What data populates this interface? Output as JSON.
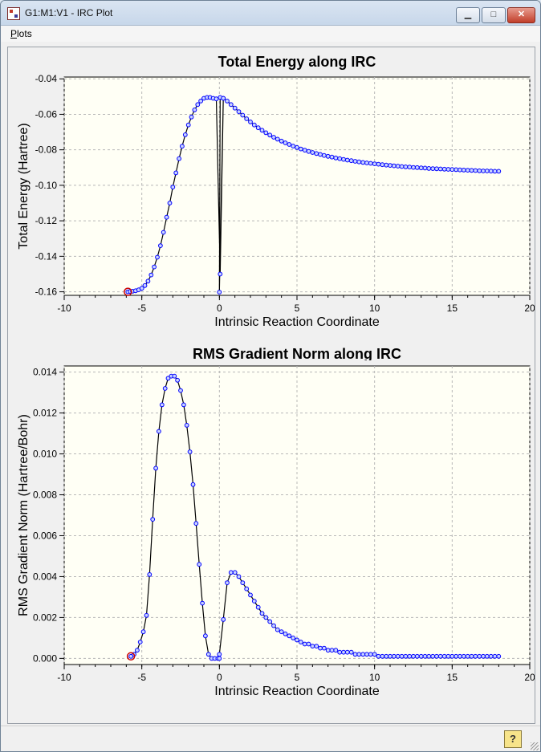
{
  "window": {
    "title": "G1:M1:V1 - IRC Plot",
    "minimize_glyph": "▁",
    "maximize_glyph": "□",
    "close_glyph": "✕",
    "icon": "app-icon"
  },
  "menu": {
    "items": [
      "Plots"
    ]
  },
  "status": {
    "help_glyph": "?",
    "icon": "help-icon"
  },
  "colors": {
    "plot_bg": "#fffff5",
    "marker": "#0000ff",
    "line": "#000000",
    "highlight": "#cc0000",
    "grid": "#b8b8b8"
  },
  "chart_data": [
    {
      "type": "line",
      "title": "Total Energy along IRC",
      "xlabel": "Intrinsic Reaction Coordinate",
      "ylabel": "Total Energy (Hartree)",
      "xlim": [
        -10,
        20
      ],
      "ylim": [
        -0.162,
        -0.039
      ],
      "xticks": [
        -10,
        -5,
        0,
        5,
        10,
        15,
        20
      ],
      "yticks": [
        -0.04,
        -0.06,
        -0.08,
        -0.1,
        -0.12,
        -0.14,
        -0.16
      ],
      "ytick_decimals": 2,
      "grid": true,
      "highlight_index": 0,
      "connect_mode": "sequence",
      "x": [
        -5.9,
        -5.75,
        -5.6,
        -5.4,
        -5.2,
        -5.0,
        -4.8,
        -4.6,
        -4.4,
        -4.2,
        -4.0,
        -3.8,
        -3.6,
        -3.4,
        -3.2,
        -3.0,
        -2.8,
        -2.6,
        -2.4,
        -2.2,
        -2.0,
        -1.8,
        -1.6,
        -1.4,
        -1.2,
        -1.0,
        -0.8,
        -0.6,
        -0.4,
        -0.2,
        0.05,
        0.25,
        0.0,
        0.05,
        0.25,
        0.5,
        0.75,
        1.0,
        1.25,
        1.5,
        1.75,
        2.0,
        2.25,
        2.5,
        2.75,
        3.0,
        3.25,
        3.5,
        3.75,
        4.0,
        4.25,
        4.5,
        4.75,
        5.0,
        5.25,
        5.5,
        5.75,
        6.0,
        6.25,
        6.5,
        6.75,
        7.0,
        7.25,
        7.5,
        7.75,
        8.0,
        8.25,
        8.5,
        8.75,
        9.0,
        9.25,
        9.5,
        9.75,
        10.0,
        10.25,
        10.5,
        10.75,
        11.0,
        11.25,
        11.5,
        11.75,
        12.0,
        12.25,
        12.5,
        12.75,
        13.0,
        13.25,
        13.5,
        13.75,
        14.0,
        14.25,
        14.5,
        14.75,
        15.0,
        15.25,
        15.5,
        15.75,
        16.0,
        16.25,
        16.5,
        16.75,
        17.0,
        17.25,
        17.5,
        17.75,
        18.0
      ],
      "y": [
        -0.16,
        -0.1598,
        -0.1597,
        -0.1594,
        -0.1589,
        -0.158,
        -0.1565,
        -0.154,
        -0.1505,
        -0.146,
        -0.1405,
        -0.134,
        -0.1265,
        -0.118,
        -0.11,
        -0.101,
        -0.093,
        -0.085,
        -0.078,
        -0.0715,
        -0.066,
        -0.0615,
        -0.0575,
        -0.0545,
        -0.0525,
        -0.051,
        -0.0505,
        -0.0505,
        -0.051,
        -0.0513,
        -0.15,
        -0.051,
        -0.1602,
        -0.0505,
        -0.051,
        -0.0525,
        -0.0545,
        -0.0565,
        -0.0585,
        -0.0605,
        -0.0625,
        -0.0643,
        -0.066,
        -0.0676,
        -0.069,
        -0.0704,
        -0.0717,
        -0.0729,
        -0.074,
        -0.0751,
        -0.0761,
        -0.077,
        -0.0779,
        -0.0787,
        -0.0795,
        -0.0802,
        -0.0809,
        -0.0815,
        -0.0821,
        -0.0826,
        -0.0832,
        -0.0837,
        -0.0841,
        -0.0846,
        -0.085,
        -0.0854,
        -0.0858,
        -0.0861,
        -0.0865,
        -0.0868,
        -0.0871,
        -0.0874,
        -0.0876,
        -0.0879,
        -0.0881,
        -0.0884,
        -0.0886,
        -0.0888,
        -0.089,
        -0.0892,
        -0.0894,
        -0.0896,
        -0.0897,
        -0.0899,
        -0.09,
        -0.0902,
        -0.0903,
        -0.0905,
        -0.0906,
        -0.0907,
        -0.0908,
        -0.0909,
        -0.091,
        -0.0911,
        -0.0912,
        -0.0913,
        -0.0914,
        -0.0915,
        -0.0916,
        -0.0917,
        -0.0918,
        -0.0919,
        -0.0919,
        -0.092,
        -0.0921,
        -0.0921
      ]
    },
    {
      "type": "line",
      "title": "RMS Gradient Norm along IRC",
      "xlabel": "Intrinsic Reaction Coordinate",
      "ylabel": "RMS Gradient Norm (Hartree/Bohr)",
      "xlim": [
        -10,
        20
      ],
      "ylim": [
        -0.0003,
        0.0143
      ],
      "xticks": [
        -10,
        -5,
        0,
        5,
        10,
        15,
        20
      ],
      "yticks": [
        0.0,
        0.002,
        0.004,
        0.006,
        0.008,
        0.01,
        0.012,
        0.014
      ],
      "ytick_decimals": 3,
      "grid": true,
      "highlight_index": 0,
      "connect_mode": "sorted",
      "x": [
        -5.7,
        -5.5,
        -5.3,
        -5.1,
        -4.9,
        -4.7,
        -4.5,
        -4.3,
        -4.1,
        -3.9,
        -3.7,
        -3.5,
        -3.3,
        -3.1,
        -2.9,
        -2.7,
        -2.5,
        -2.3,
        -2.1,
        -1.9,
        -1.7,
        -1.5,
        -1.3,
        -1.1,
        -0.9,
        -0.7,
        -0.5,
        -0.3,
        -0.1,
        0.0,
        0.0,
        0.25,
        0.5,
        0.75,
        1.0,
        1.25,
        1.5,
        1.75,
        2.0,
        2.25,
        2.5,
        2.75,
        3.0,
        3.25,
        3.5,
        3.75,
        4.0,
        4.25,
        4.5,
        4.75,
        5.0,
        5.25,
        5.5,
        5.75,
        6.0,
        6.25,
        6.5,
        6.75,
        7.0,
        7.25,
        7.5,
        7.75,
        8.0,
        8.25,
        8.5,
        8.75,
        9.0,
        9.25,
        9.5,
        9.75,
        10.0,
        10.25,
        10.5,
        10.75,
        11.0,
        11.25,
        11.5,
        11.75,
        12.0,
        12.25,
        12.5,
        12.75,
        13.0,
        13.25,
        13.5,
        13.75,
        14.0,
        14.25,
        14.5,
        14.75,
        15.0,
        15.25,
        15.5,
        15.75,
        16.0,
        16.25,
        16.5,
        16.75,
        17.0,
        17.25,
        17.5,
        17.75,
        18.0
      ],
      "y": [
        0.0001,
        0.0002,
        0.0004,
        0.0008,
        0.0013,
        0.0021,
        0.0041,
        0.0068,
        0.0093,
        0.0111,
        0.0124,
        0.0132,
        0.0137,
        0.0138,
        0.0138,
        0.0136,
        0.0131,
        0.0124,
        0.0114,
        0.0101,
        0.0085,
        0.0066,
        0.0046,
        0.0027,
        0.0011,
        0.0002,
        0.0,
        0.0,
        0.0,
        0.0,
        0.0002,
        0.0019,
        0.0037,
        0.0042,
        0.0042,
        0.004,
        0.0037,
        0.0034,
        0.0031,
        0.0028,
        0.0025,
        0.0022,
        0.002,
        0.0018,
        0.0016,
        0.0014,
        0.0013,
        0.0012,
        0.0011,
        0.001,
        0.0009,
        0.0008,
        0.0007,
        0.0007,
        0.0006,
        0.0006,
        0.0005,
        0.0005,
        0.0004,
        0.0004,
        0.0004,
        0.0003,
        0.0003,
        0.0003,
        0.0003,
        0.0002,
        0.0002,
        0.0002,
        0.0002,
        0.0002,
        0.0002,
        0.0001,
        0.0001,
        0.0001,
        0.0001,
        0.0001,
        0.0001,
        0.0001,
        0.0001,
        0.0001,
        0.0001,
        0.0001,
        0.0001,
        0.0001,
        0.0001,
        0.0001,
        0.0001,
        0.0001,
        0.0001,
        0.0001,
        0.0001,
        0.0001,
        0.0001,
        0.0001,
        0.0001,
        0.0001,
        0.0001,
        0.0001,
        0.0001,
        0.0001,
        0.0001,
        0.0001,
        0.0001
      ]
    }
  ]
}
